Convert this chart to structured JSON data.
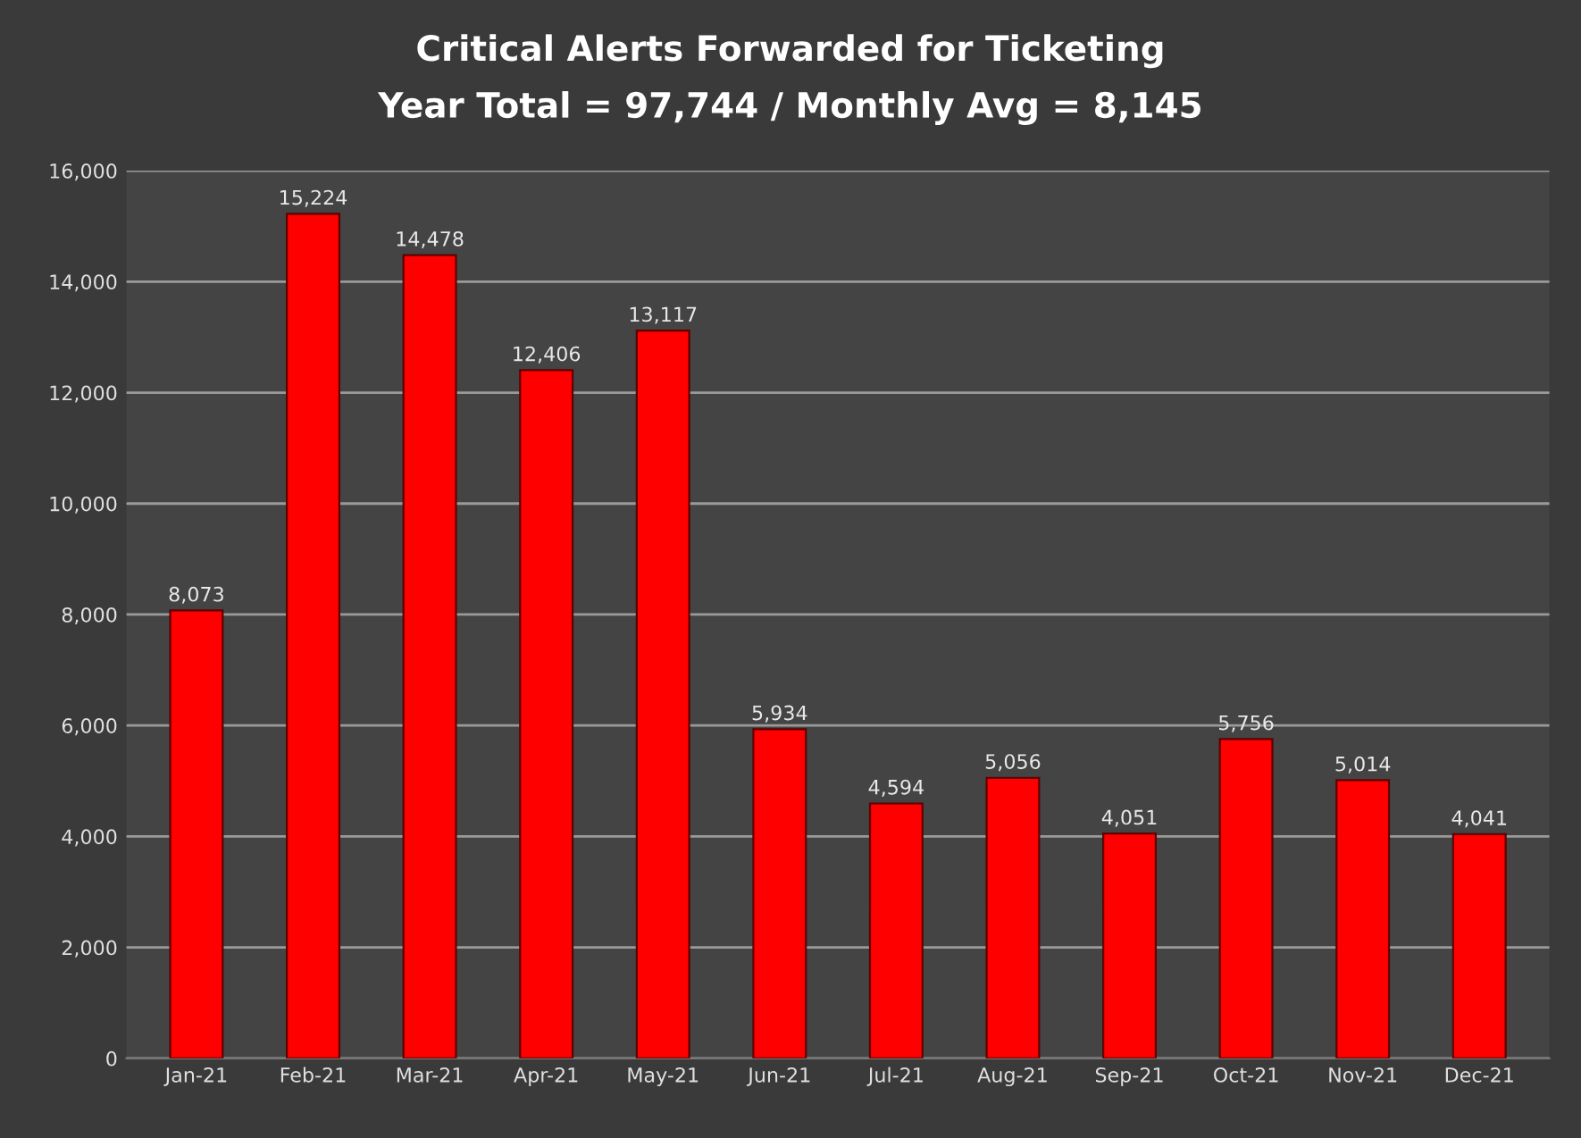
{
  "chart_data": {
    "type": "bar",
    "title": "Critical Alerts Forwarded for Ticketing",
    "subtitle": "Year Total = 97,744 / Monthly Avg = 8,145",
    "categories": [
      "Jan-21",
      "Feb-21",
      "Mar-21",
      "Apr-21",
      "May-21",
      "Jun-21",
      "Jul-21",
      "Aug-21",
      "Sep-21",
      "Oct-21",
      "Nov-21",
      "Dec-21"
    ],
    "values": [
      8073,
      15224,
      14478,
      12406,
      13117,
      5934,
      4594,
      5056,
      4051,
      5756,
      5014,
      4041
    ],
    "value_labels": [
      "8,073",
      "15,224",
      "14,478",
      "12,406",
      "13,117",
      "5,934",
      "4,594",
      "5,056",
      "4,051",
      "5,756",
      "5,014",
      "4,041"
    ],
    "color": "#ff0000",
    "ylim": [
      0,
      16000
    ],
    "yticks": [
      0,
      {
        "value": 2000,
        "label": "2,000"
      },
      {
        "value": 4000,
        "label": "4,000"
      },
      {
        "value": 6000,
        "label": "6,000"
      },
      {
        "value": 8000,
        "label": "8,000"
      },
      {
        "value": 10000,
        "label": "10,000"
      },
      {
        "value": 12000,
        "label": "12,000"
      },
      {
        "value": 14000,
        "label": "14,000"
      },
      {
        "value": 16000,
        "label": "16,000"
      }
    ],
    "grid": "y",
    "legend": false
  }
}
